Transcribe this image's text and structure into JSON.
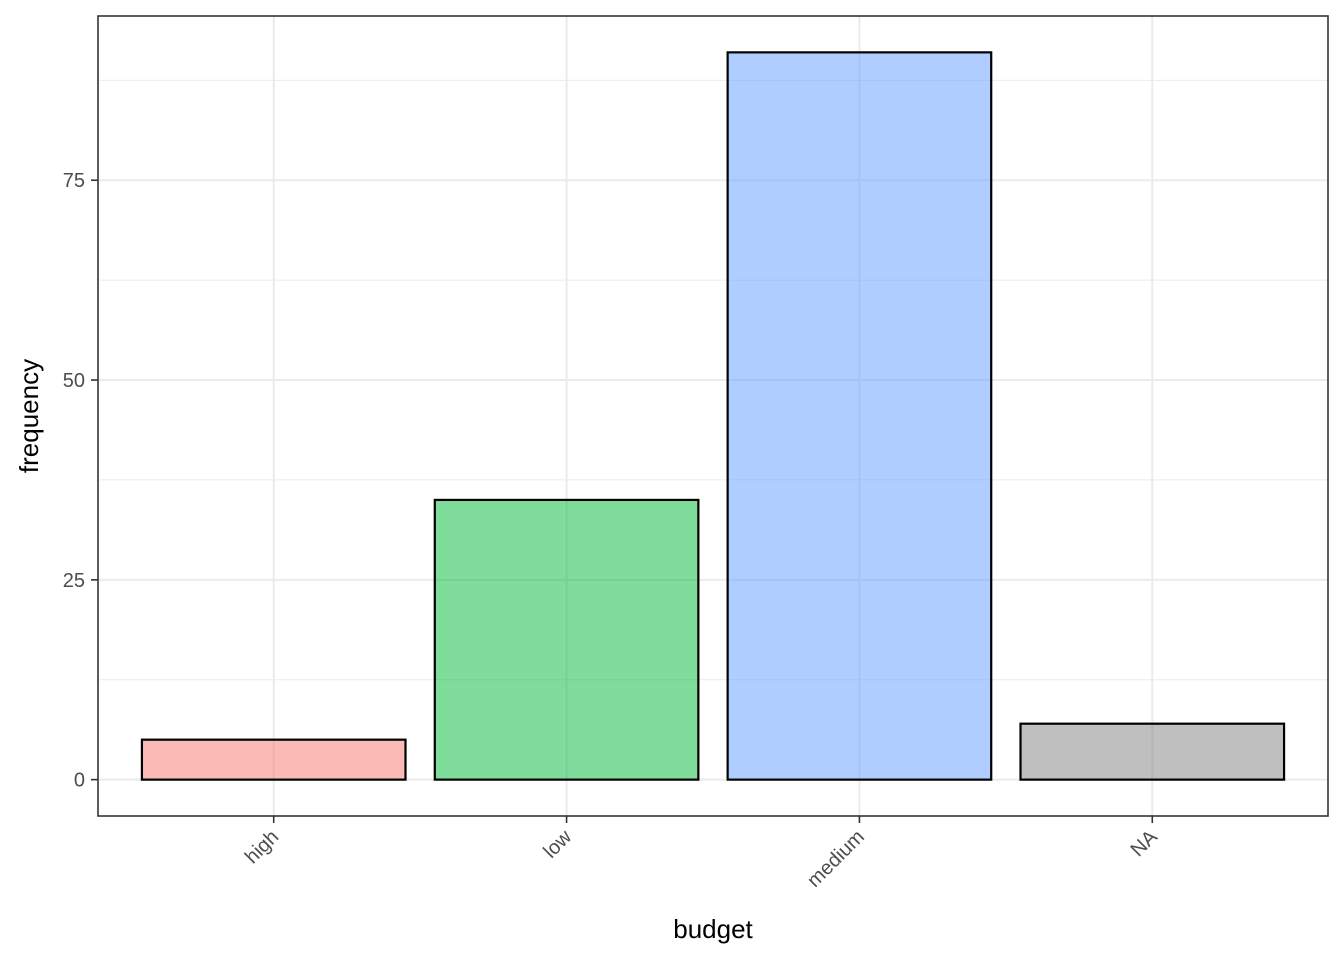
{
  "chart_data": {
    "type": "bar",
    "title": "",
    "xlabel": "budget",
    "ylabel": "frequency",
    "categories": [
      "high",
      "low",
      "medium",
      "NA"
    ],
    "values": [
      5,
      35,
      91,
      7
    ],
    "colors": [
      "#F8766D",
      "#00BA38",
      "#619CFF",
      "#7F7F7F"
    ],
    "ylim": [
      -4.55,
      95.55
    ],
    "yticks": [
      0,
      25,
      50,
      75
    ],
    "grid": true,
    "legend": "none"
  }
}
